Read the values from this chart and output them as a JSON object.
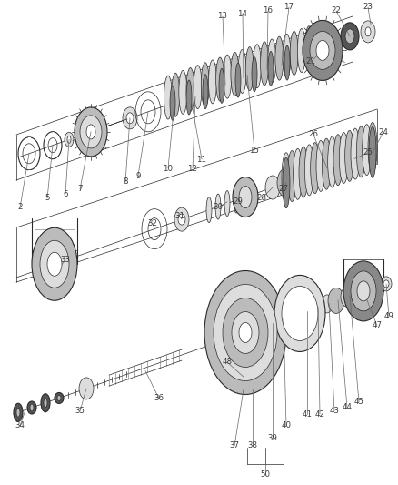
{
  "bg_color": "#ffffff",
  "line_color": "#2a2a2a",
  "label_color": "#3a3a3a",
  "fig_width": 4.38,
  "fig_height": 5.33,
  "dpi": 100,
  "leader_color": "#666666",
  "gray_dark": "#555555",
  "gray_mid": "#888888",
  "gray_light": "#bbbbbb",
  "gray_lighter": "#dddddd",
  "gray_fill": "#aaaaaa",
  "coil_color": "#444444"
}
